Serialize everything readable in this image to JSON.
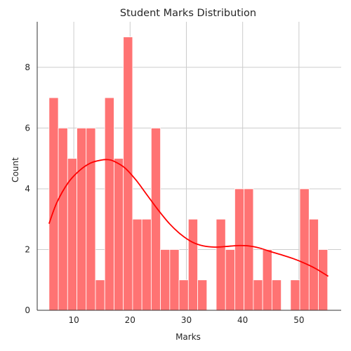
{
  "chart_data": {
    "type": "bar",
    "title": "Student Marks Distribution",
    "xlabel": "Marks",
    "ylabel": "Count",
    "xlim": [
      3.5,
      57.5
    ],
    "ylim": [
      0,
      9.5
    ],
    "xticks": [
      10,
      20,
      30,
      40,
      50
    ],
    "yticks": [
      0,
      2,
      4,
      6,
      8
    ],
    "grid": true,
    "bins": {
      "start": 5.6,
      "width": 1.65,
      "counts": [
        7,
        6,
        5,
        6,
        6,
        1,
        7,
        5,
        9,
        3,
        3,
        6,
        2,
        2,
        1,
        3,
        1,
        0,
        3,
        2,
        4,
        4,
        1,
        2,
        1,
        0,
        1,
        4,
        3,
        2
      ]
    },
    "kde": {
      "x": [
        5.6,
        7,
        9,
        11,
        13,
        15,
        16,
        17,
        19,
        21,
        23,
        25,
        27,
        29,
        31,
        33,
        35,
        37,
        39,
        41,
        43,
        45,
        47,
        49,
        51,
        53,
        55.2
      ],
      "y": [
        2.85,
        3.55,
        4.2,
        4.6,
        4.85,
        4.95,
        4.96,
        4.92,
        4.7,
        4.3,
        3.8,
        3.3,
        2.85,
        2.5,
        2.25,
        2.12,
        2.08,
        2.1,
        2.13,
        2.12,
        2.05,
        1.93,
        1.82,
        1.7,
        1.55,
        1.37,
        1.12
      ]
    },
    "colors": {
      "bar": "#ff7373",
      "kde": "#ff0000",
      "grid": "#cccccc"
    }
  }
}
